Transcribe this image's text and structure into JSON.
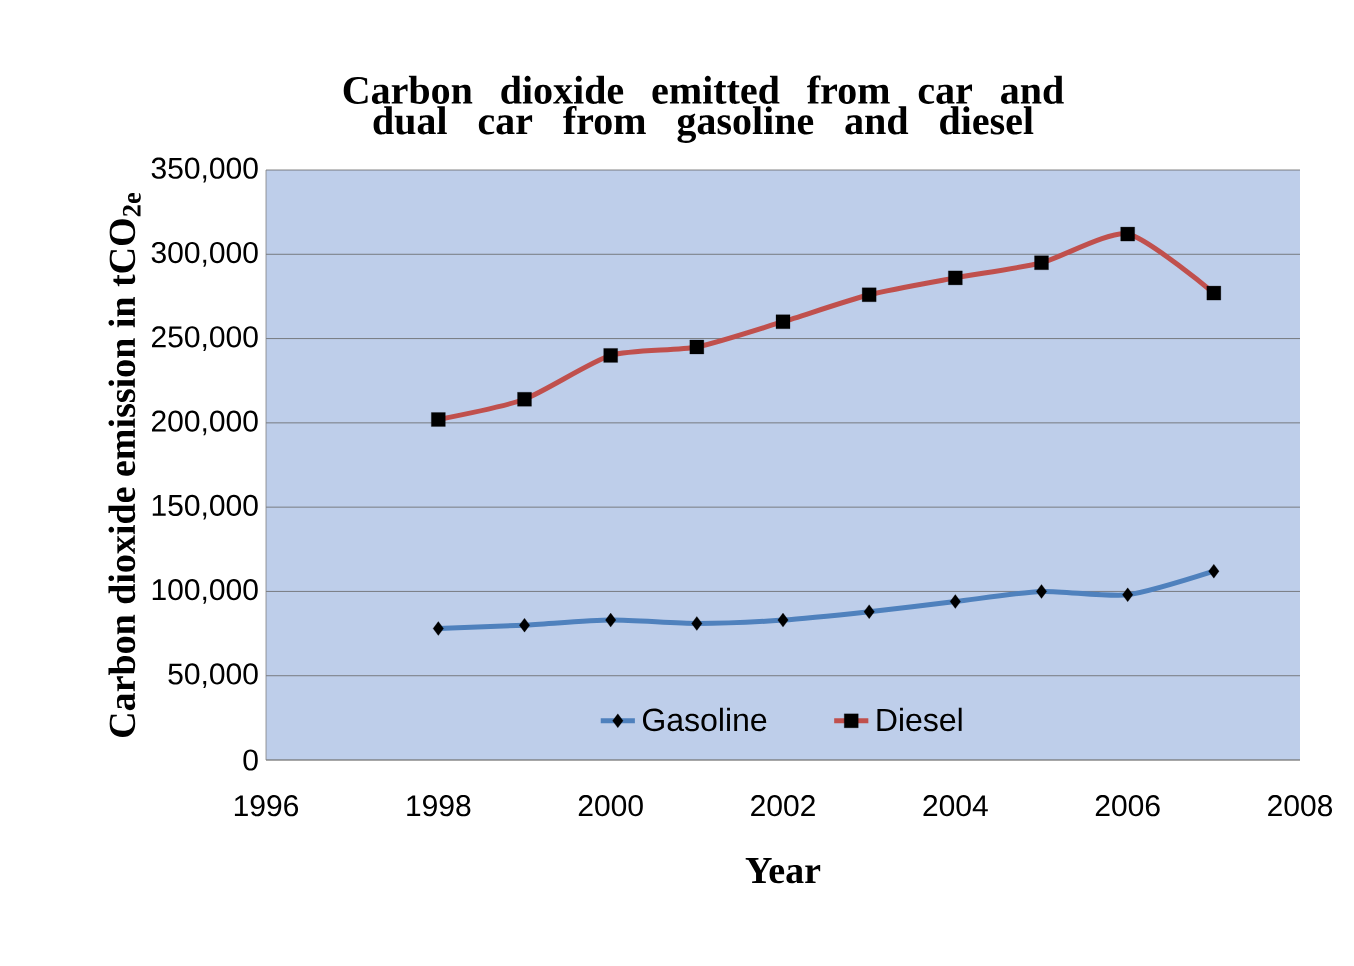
{
  "chart_data": {
    "type": "line",
    "title": "Carbon dioxide emitted from car and dual car from gasoline and diesel",
    "xlabel": "Year",
    "ylabel": "Carbon dioxide emission in tCO$_{2e}$",
    "x": [
      1998,
      1999,
      2000,
      2001,
      2002,
      2003,
      2004,
      2005,
      2006,
      2007
    ],
    "series": [
      {
        "name": "Gasoline",
        "color": "#4f81bd",
        "marker": "diamond",
        "values": [
          78000,
          80000,
          83000,
          81000,
          83000,
          88000,
          94000,
          100000,
          98000,
          112000
        ]
      },
      {
        "name": "Diesel",
        "color": "#c0504d",
        "marker": "square",
        "values": [
          202000,
          214000,
          240000,
          245000,
          260000,
          276000,
          286000,
          295000,
          312000,
          277000
        ]
      }
    ],
    "xlim": [
      1996,
      2008
    ],
    "xticks": [
      1996,
      1998,
      2000,
      2002,
      2004,
      2006,
      2008
    ],
    "ylim": [
      0,
      350000
    ],
    "yticks": [
      {
        "value": 0,
        "label": "0"
      },
      {
        "value": 50000,
        "label": "50,000"
      },
      {
        "value": 100000,
        "label": "100,000"
      },
      {
        "value": 150000,
        "label": "150,000"
      },
      {
        "value": 200000,
        "label": "200,000"
      },
      {
        "value": 250000,
        "label": "250,000"
      },
      {
        "value": 300000,
        "label": "300,000"
      },
      {
        "value": 350000,
        "label": "350,000"
      }
    ],
    "grid": "y",
    "legend": "bottom",
    "line_style": "solid"
  }
}
